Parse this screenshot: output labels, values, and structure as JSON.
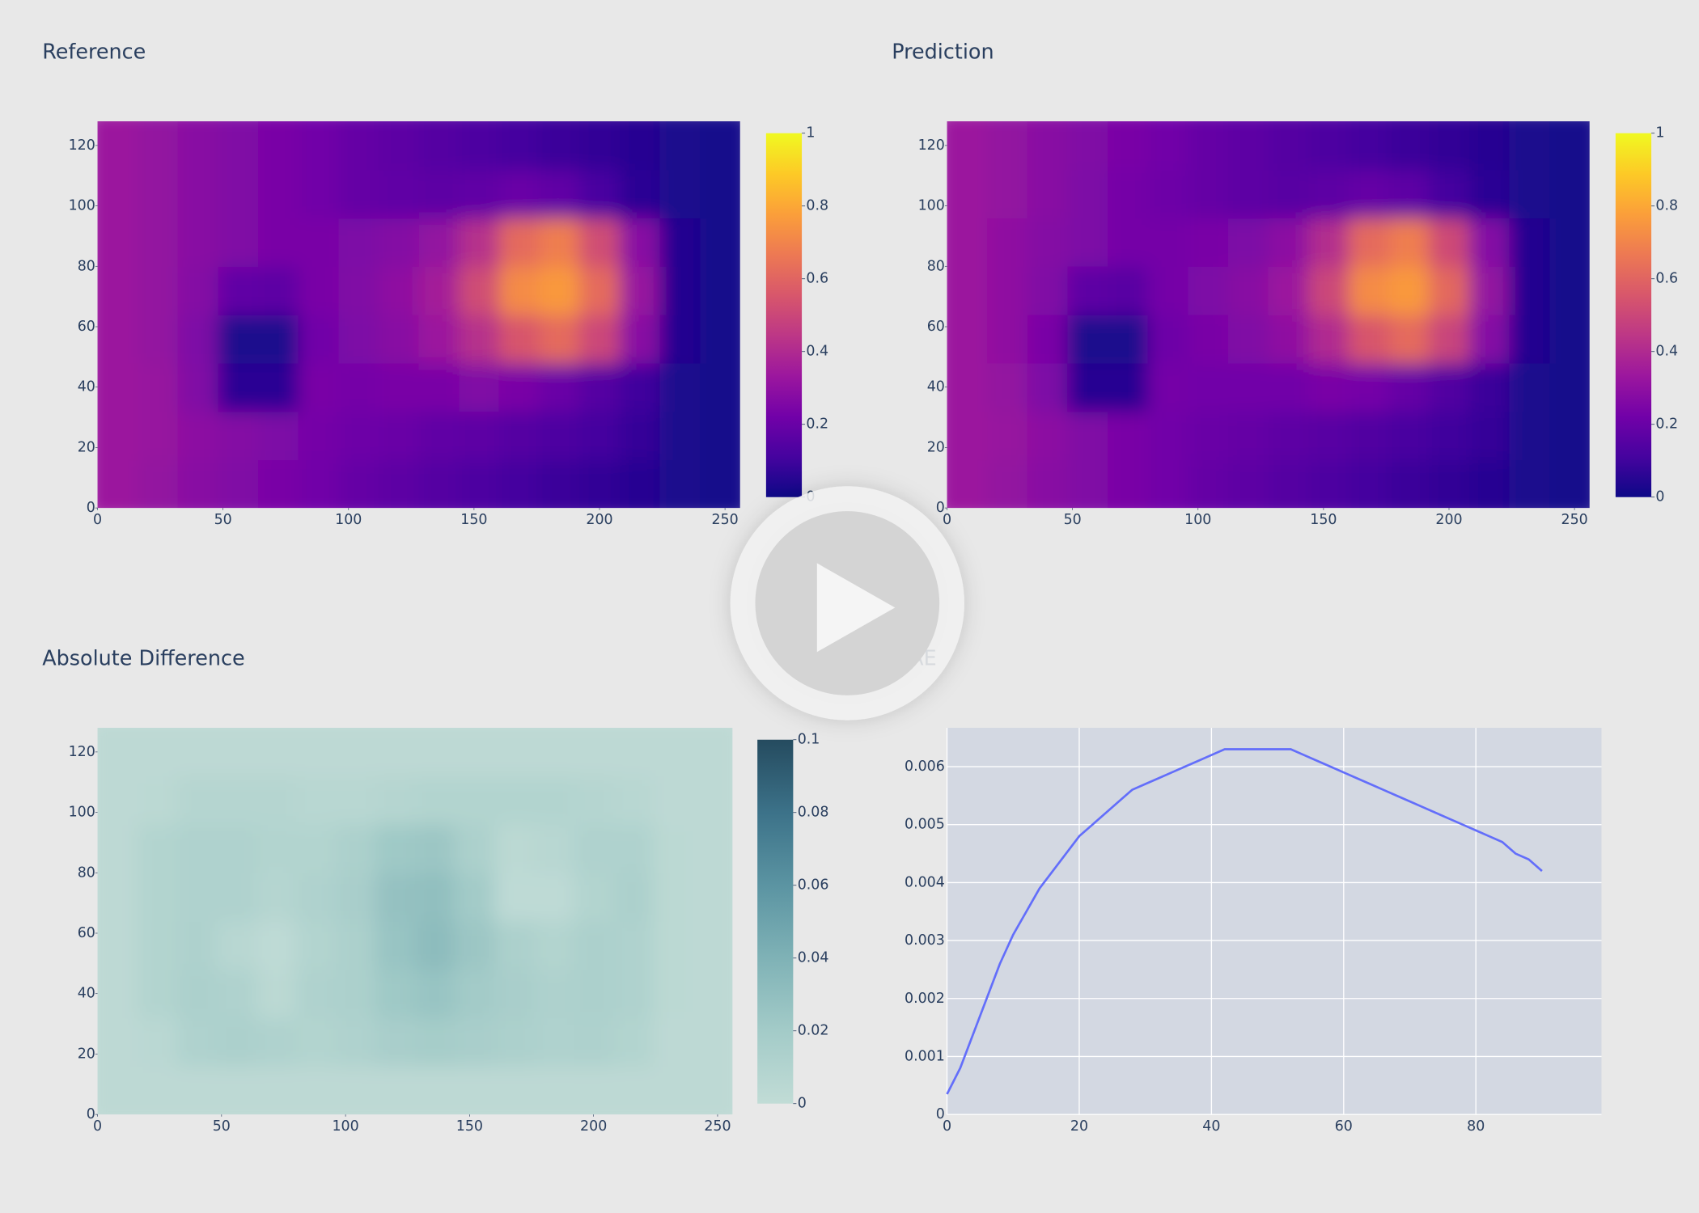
{
  "chart_data": [
    {
      "type": "heatmap",
      "title": "Reference",
      "x": [
        8,
        24,
        40,
        56,
        72,
        88,
        104,
        120,
        136,
        152,
        168,
        184,
        200,
        216,
        232,
        248
      ],
      "y": [
        8,
        24,
        40,
        56,
        72,
        88,
        104,
        120
      ],
      "z": [
        [
          0.33,
          0.31,
          0.28,
          0.26,
          0.24,
          0.22,
          0.19,
          0.17,
          0.15,
          0.13,
          0.11,
          0.09,
          0.07,
          0.05,
          0.03,
          0.02
        ],
        [
          0.33,
          0.32,
          0.29,
          0.27,
          0.25,
          0.23,
          0.21,
          0.2,
          0.18,
          0.17,
          0.15,
          0.13,
          0.11,
          0.08,
          0.03,
          0.02
        ],
        [
          0.33,
          0.32,
          0.26,
          0.06,
          0.06,
          0.24,
          0.23,
          0.24,
          0.24,
          0.26,
          0.24,
          0.2,
          0.15,
          0.1,
          0.03,
          0.02
        ],
        [
          0.33,
          0.31,
          0.25,
          0.03,
          0.03,
          0.22,
          0.25,
          0.28,
          0.33,
          0.42,
          0.55,
          0.62,
          0.5,
          0.28,
          0.04,
          0.02
        ],
        [
          0.33,
          0.31,
          0.27,
          0.18,
          0.17,
          0.24,
          0.26,
          0.3,
          0.36,
          0.52,
          0.72,
          0.76,
          0.62,
          0.32,
          0.04,
          0.02
        ],
        [
          0.33,
          0.31,
          0.28,
          0.26,
          0.24,
          0.24,
          0.25,
          0.27,
          0.31,
          0.42,
          0.62,
          0.68,
          0.52,
          0.28,
          0.04,
          0.02
        ],
        [
          0.33,
          0.31,
          0.28,
          0.26,
          0.24,
          0.22,
          0.19,
          0.18,
          0.17,
          0.18,
          0.2,
          0.18,
          0.12,
          0.06,
          0.03,
          0.02
        ],
        [
          0.33,
          0.31,
          0.28,
          0.26,
          0.24,
          0.22,
          0.19,
          0.17,
          0.15,
          0.13,
          0.11,
          0.09,
          0.07,
          0.05,
          0.03,
          0.02
        ]
      ],
      "xlim": [
        0,
        256
      ],
      "ylim": [
        0,
        128
      ],
      "xticks": [
        0,
        50,
        100,
        150,
        200,
        250
      ],
      "yticks": [
        0,
        20,
        40,
        60,
        80,
        100,
        120
      ],
      "zlim": [
        0,
        1
      ],
      "zticks": [
        0,
        0.2,
        0.4,
        0.6,
        0.8,
        1
      ],
      "colorscale": [
        "#0d0887",
        "#46039f",
        "#7201a8",
        "#9c179e",
        "#bd3786",
        "#d8576b",
        "#ed7953",
        "#fb9f3a",
        "#fdca26",
        "#f0f921"
      ]
    },
    {
      "type": "heatmap",
      "title": "Prediction",
      "x": [
        8,
        24,
        40,
        56,
        72,
        88,
        104,
        120,
        136,
        152,
        168,
        184,
        200,
        216,
        232,
        248
      ],
      "y": [
        8,
        24,
        40,
        56,
        72,
        88,
        104,
        120
      ],
      "z": [
        [
          0.33,
          0.31,
          0.28,
          0.26,
          0.24,
          0.22,
          0.19,
          0.17,
          0.15,
          0.13,
          0.11,
          0.09,
          0.07,
          0.05,
          0.03,
          0.02
        ],
        [
          0.33,
          0.32,
          0.29,
          0.26,
          0.24,
          0.22,
          0.2,
          0.19,
          0.17,
          0.16,
          0.14,
          0.12,
          0.1,
          0.08,
          0.03,
          0.02
        ],
        [
          0.33,
          0.31,
          0.25,
          0.05,
          0.05,
          0.23,
          0.22,
          0.22,
          0.22,
          0.24,
          0.23,
          0.19,
          0.14,
          0.09,
          0.03,
          0.02
        ],
        [
          0.33,
          0.3,
          0.24,
          0.03,
          0.03,
          0.21,
          0.24,
          0.26,
          0.3,
          0.4,
          0.55,
          0.62,
          0.49,
          0.27,
          0.04,
          0.02
        ],
        [
          0.33,
          0.3,
          0.26,
          0.17,
          0.16,
          0.23,
          0.25,
          0.28,
          0.33,
          0.5,
          0.72,
          0.76,
          0.61,
          0.31,
          0.04,
          0.02
        ],
        [
          0.33,
          0.3,
          0.27,
          0.25,
          0.23,
          0.23,
          0.24,
          0.25,
          0.29,
          0.41,
          0.62,
          0.68,
          0.51,
          0.27,
          0.04,
          0.02
        ],
        [
          0.33,
          0.31,
          0.28,
          0.25,
          0.23,
          0.21,
          0.19,
          0.17,
          0.16,
          0.17,
          0.19,
          0.17,
          0.11,
          0.06,
          0.03,
          0.02
        ],
        [
          0.33,
          0.31,
          0.28,
          0.26,
          0.24,
          0.22,
          0.19,
          0.17,
          0.15,
          0.13,
          0.11,
          0.09,
          0.07,
          0.05,
          0.03,
          0.02
        ]
      ],
      "xlim": [
        0,
        256
      ],
      "ylim": [
        0,
        128
      ],
      "xticks": [
        0,
        50,
        100,
        150,
        200,
        250
      ],
      "yticks": [
        0,
        20,
        40,
        60,
        80,
        100,
        120
      ],
      "zlim": [
        0,
        1
      ],
      "zticks": [
        0,
        0.2,
        0.4,
        0.6,
        0.8,
        1
      ],
      "colorscale": [
        "#0d0887",
        "#46039f",
        "#7201a8",
        "#9c179e",
        "#bd3786",
        "#d8576b",
        "#ed7953",
        "#fb9f3a",
        "#fdca26",
        "#f0f921"
      ]
    },
    {
      "type": "heatmap",
      "title": "Absolute Difference",
      "x": [
        8,
        24,
        40,
        56,
        72,
        88,
        104,
        120,
        136,
        152,
        168,
        184,
        200,
        216,
        232,
        248
      ],
      "y": [
        8,
        24,
        40,
        56,
        72,
        88,
        104,
        120
      ],
      "z": [
        [
          0.003,
          0.003,
          0.003,
          0.003,
          0.003,
          0.003,
          0.003,
          0.003,
          0.003,
          0.003,
          0.003,
          0.003,
          0.003,
          0.003,
          0.003,
          0.003
        ],
        [
          0.003,
          0.005,
          0.012,
          0.014,
          0.012,
          0.01,
          0.012,
          0.016,
          0.018,
          0.016,
          0.014,
          0.012,
          0.013,
          0.01,
          0.003,
          0.003
        ],
        [
          0.003,
          0.01,
          0.014,
          0.012,
          0.004,
          0.012,
          0.014,
          0.022,
          0.026,
          0.02,
          0.016,
          0.013,
          0.014,
          0.012,
          0.004,
          0.003
        ],
        [
          0.003,
          0.01,
          0.013,
          0.006,
          0.002,
          0.01,
          0.014,
          0.026,
          0.032,
          0.024,
          0.014,
          0.01,
          0.014,
          0.012,
          0.004,
          0.003
        ],
        [
          0.003,
          0.01,
          0.012,
          0.012,
          0.008,
          0.012,
          0.016,
          0.028,
          0.03,
          0.02,
          0.002,
          0.002,
          0.01,
          0.014,
          0.004,
          0.003
        ],
        [
          0.003,
          0.01,
          0.012,
          0.012,
          0.01,
          0.01,
          0.014,
          0.022,
          0.024,
          0.014,
          0.004,
          0.006,
          0.012,
          0.012,
          0.004,
          0.003
        ],
        [
          0.003,
          0.004,
          0.008,
          0.008,
          0.008,
          0.006,
          0.006,
          0.008,
          0.01,
          0.01,
          0.01,
          0.01,
          0.008,
          0.006,
          0.003,
          0.003
        ],
        [
          0.003,
          0.003,
          0.003,
          0.003,
          0.003,
          0.003,
          0.003,
          0.003,
          0.003,
          0.003,
          0.003,
          0.003,
          0.003,
          0.003,
          0.003,
          0.003
        ]
      ],
      "xlim": [
        0,
        256
      ],
      "ylim": [
        0,
        128
      ],
      "xticks": [
        0,
        50,
        100,
        150,
        200,
        250
      ],
      "yticks": [
        0,
        20,
        40,
        60,
        80,
        100,
        120
      ],
      "zlim": [
        0,
        0.1
      ],
      "zticks": [
        0,
        0.02,
        0.04,
        0.06,
        0.08,
        0.1
      ],
      "colorscale": [
        "#c1dcd6",
        "#a3cbc8",
        "#7fb2b6",
        "#5b94a2",
        "#3c7289",
        "#254b5f"
      ]
    },
    {
      "type": "line",
      "title": "MAE",
      "x": [
        0,
        2,
        4,
        6,
        8,
        10,
        12,
        14,
        16,
        18,
        20,
        22,
        24,
        26,
        28,
        30,
        32,
        34,
        36,
        38,
        40,
        42,
        44,
        46,
        48,
        50,
        52,
        54,
        56,
        58,
        60,
        62,
        64,
        66,
        68,
        70,
        72,
        74,
        76,
        78,
        80,
        82,
        84,
        86,
        88,
        90
      ],
      "values": [
        0.00035,
        0.0008,
        0.0014,
        0.002,
        0.0026,
        0.0031,
        0.0035,
        0.0039,
        0.0042,
        0.0045,
        0.0048,
        0.005,
        0.0052,
        0.0054,
        0.0056,
        0.0057,
        0.0058,
        0.0059,
        0.006,
        0.0061,
        0.0062,
        0.0063,
        0.0063,
        0.0063,
        0.0063,
        0.0063,
        0.0063,
        0.0062,
        0.0061,
        0.006,
        0.0059,
        0.0058,
        0.0057,
        0.0056,
        0.0055,
        0.0054,
        0.0053,
        0.0052,
        0.0051,
        0.005,
        0.0049,
        0.0048,
        0.0047,
        0.0045,
        0.0044,
        0.0042
      ],
      "color": "#636efa",
      "xlim": [
        0,
        99
      ],
      "ylim": [
        0,
        0.00667
      ],
      "xticks": [
        0,
        20,
        40,
        60,
        80
      ],
      "yticks": [
        0,
        0.001,
        0.002,
        0.003,
        0.004,
        0.005,
        0.006
      ],
      "grid": true,
      "plot_bgcolor": "#d3d8e2"
    }
  ]
}
